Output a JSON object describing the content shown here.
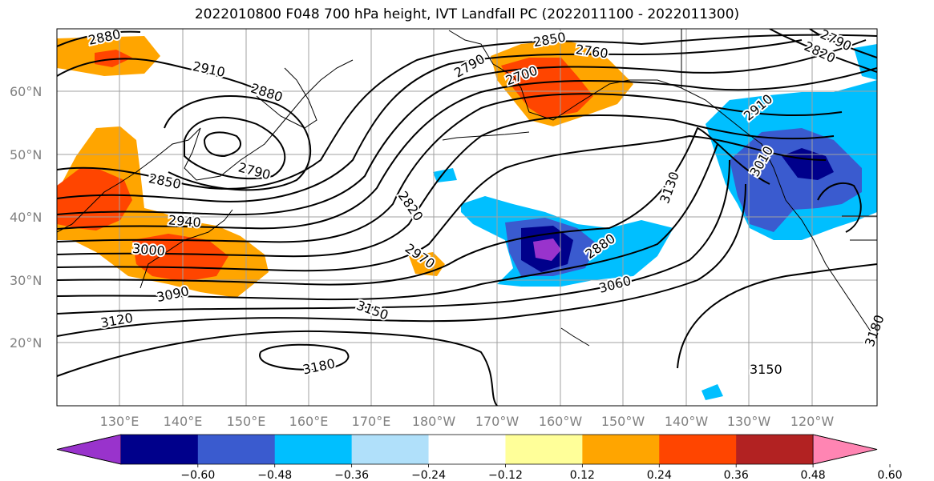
{
  "title": "2022010800 F048 700 hPa height, IVT Landfall PC (2022011100 - 2022011300)",
  "lat_labels": [
    "60°N",
    "50°N",
    "40°N",
    "30°N",
    "20°N"
  ],
  "lon_labels": [
    "130°E",
    "140°E",
    "150°E",
    "160°E",
    "170°E",
    "180°W",
    "170°W",
    "160°W",
    "150°W",
    "140°W",
    "130°W",
    "120°W"
  ],
  "contour_labels": [
    "2880",
    "2910",
    "2880",
    "2850",
    "2790",
    "2760",
    "2700",
    "2790",
    "2850",
    "2940",
    "3000",
    "3090",
    "3120",
    "2820",
    "2970",
    "2880",
    "3060",
    "3150",
    "3180",
    "3150",
    "3130",
    "3010",
    "2790",
    "2820",
    "3180",
    "2910"
  ],
  "colorbar": {
    "colors": [
      "#9933cc",
      "#00008b",
      "#3a5bcf",
      "#00bfff",
      "#b0e0fa",
      "#ffffff",
      "#ffff99",
      "#ffa500",
      "#ff4500",
      "#b22222",
      "#ff85b3"
    ],
    "ticks": [
      "−0.60",
      "−0.48",
      "−0.36",
      "−0.24",
      "−0.12",
      "0.12",
      "0.24",
      "0.36",
      "0.48",
      "0.60"
    ]
  }
}
